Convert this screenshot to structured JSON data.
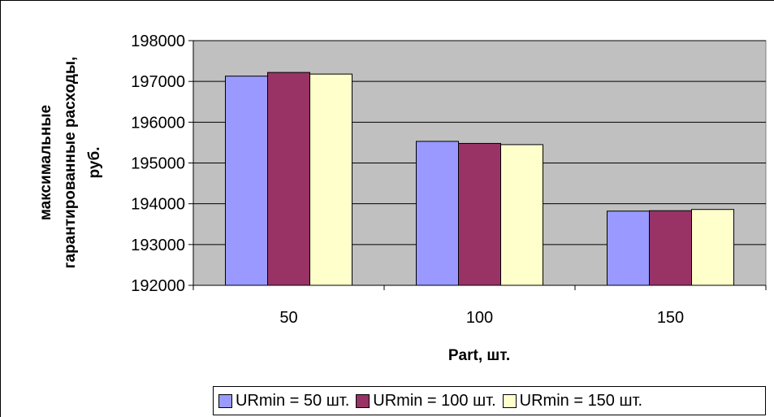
{
  "chart_data": {
    "type": "bar",
    "categories": [
      "50",
      "100",
      "150"
    ],
    "series": [
      {
        "name": "URmin = 50 шт.",
        "values": [
          197130,
          195530,
          193820
        ],
        "color": "#9999ff"
      },
      {
        "name": "URmin = 100 шт.",
        "values": [
          197220,
          195480,
          193830
        ],
        "color": "#993366"
      },
      {
        "name": "URmin = 150 шт.",
        "values": [
          197180,
          195450,
          193860
        ],
        "color": "#ffffcc"
      }
    ],
    "xlabel": "Part, шт.",
    "ylabel_lines": [
      "максимальные",
      "гарантированные расходы,",
      "руб."
    ],
    "ylim": [
      192000,
      198000
    ],
    "yticks": [
      192000,
      193000,
      194000,
      195000,
      196000,
      197000,
      198000
    ],
    "grid": true,
    "plot_background": "#c0c0c0",
    "legend_position": "bottom"
  }
}
